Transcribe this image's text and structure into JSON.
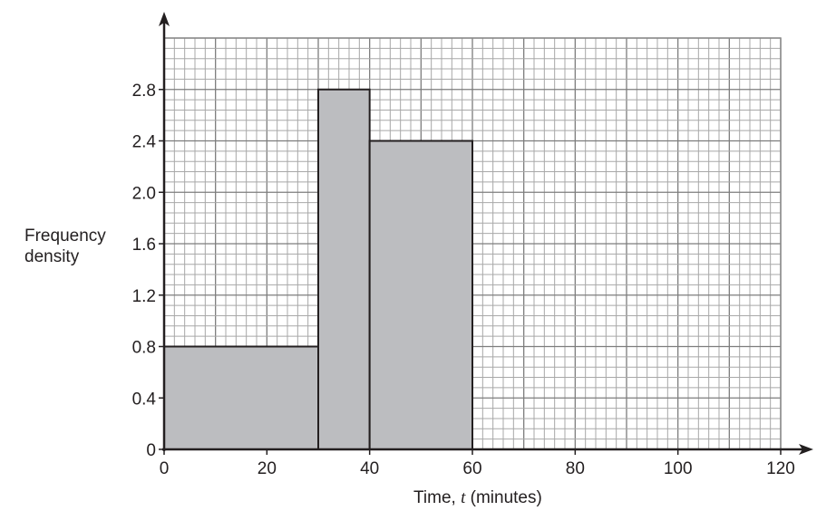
{
  "chart_data": {
    "type": "bar",
    "subtype": "histogram",
    "title": "",
    "xlabel": "Time, t (minutes)",
    "ylabel": "Frequency density",
    "ylabel_lines": [
      "Frequency",
      "density"
    ],
    "xlim": [
      0,
      120
    ],
    "ylim": [
      0,
      3.2
    ],
    "x_ticks": [
      0,
      20,
      40,
      60,
      80,
      100,
      120
    ],
    "x_tick_labels": [
      "0",
      "20",
      "40",
      "60",
      "80",
      "100",
      "120"
    ],
    "y_ticks": [
      0,
      0.4,
      0.8,
      1.2,
      1.6,
      2.0,
      2.4,
      2.8
    ],
    "y_tick_labels": [
      "0",
      "0.4",
      "0.8",
      "1.2",
      "1.6",
      "2.0",
      "2.4",
      "2.8"
    ],
    "grid": true,
    "grid_minor_x_step": 2,
    "grid_minor_y_step": 0.08,
    "bins": [
      {
        "from": 0,
        "to": 30,
        "frequency_density": 0.8
      },
      {
        "from": 30,
        "to": 40,
        "frequency_density": 2.8
      },
      {
        "from": 40,
        "to": 60,
        "frequency_density": 2.4
      }
    ],
    "categories": [
      "0-30",
      "30-40",
      "40-60"
    ],
    "values": [
      0.8,
      2.8,
      2.4
    ],
    "colors": {
      "bar_fill": "#bcbdc0",
      "bar_stroke": "#231f20",
      "grid": "#9a9a9a",
      "axis": "#231f20"
    }
  }
}
